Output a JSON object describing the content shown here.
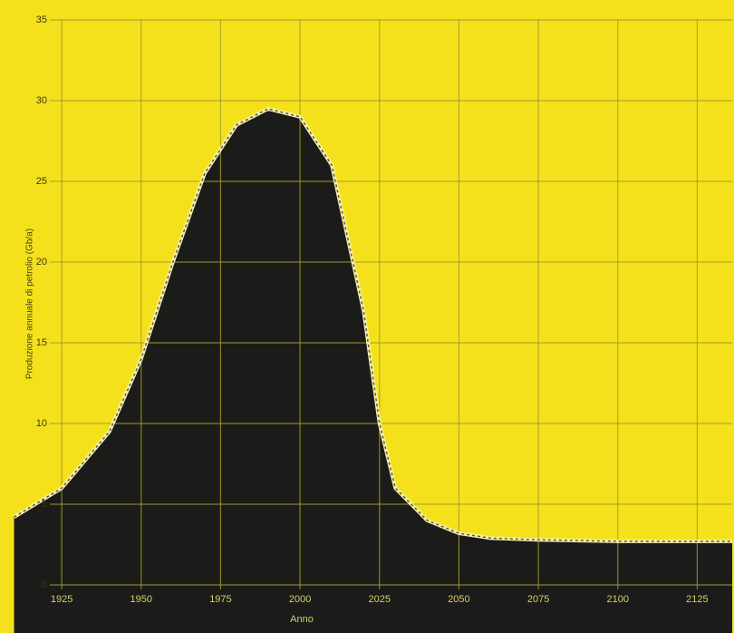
{
  "chart_data": {
    "type": "area",
    "x_label": "Anno",
    "y_label": "Produzione annuale di petrolio (Gb/a)",
    "x": [
      1910,
      1925,
      1940,
      1950,
      1960,
      1970,
      1980,
      1990,
      2000,
      2010,
      2020,
      2025,
      2030,
      2040,
      2050,
      2060,
      2075,
      2100,
      2125,
      2136
    ],
    "values": [
      4.2,
      6,
      9.5,
      14,
      20,
      25.5,
      28.5,
      29.5,
      29,
      26,
      17,
      10,
      6,
      4,
      3.2,
      2.9,
      2.8,
      2.7,
      2.7,
      2.7
    ],
    "color": "#1b1b19",
    "xlim": [
      1909,
      2136
    ],
    "ylim": [
      0,
      35
    ],
    "xticks": [
      1925,
      1950,
      1975,
      2000,
      2025,
      2050,
      2075,
      2100,
      2125
    ],
    "yticks": [
      0,
      5,
      10,
      15,
      20,
      25,
      30,
      35
    ],
    "grid": true
  }
}
